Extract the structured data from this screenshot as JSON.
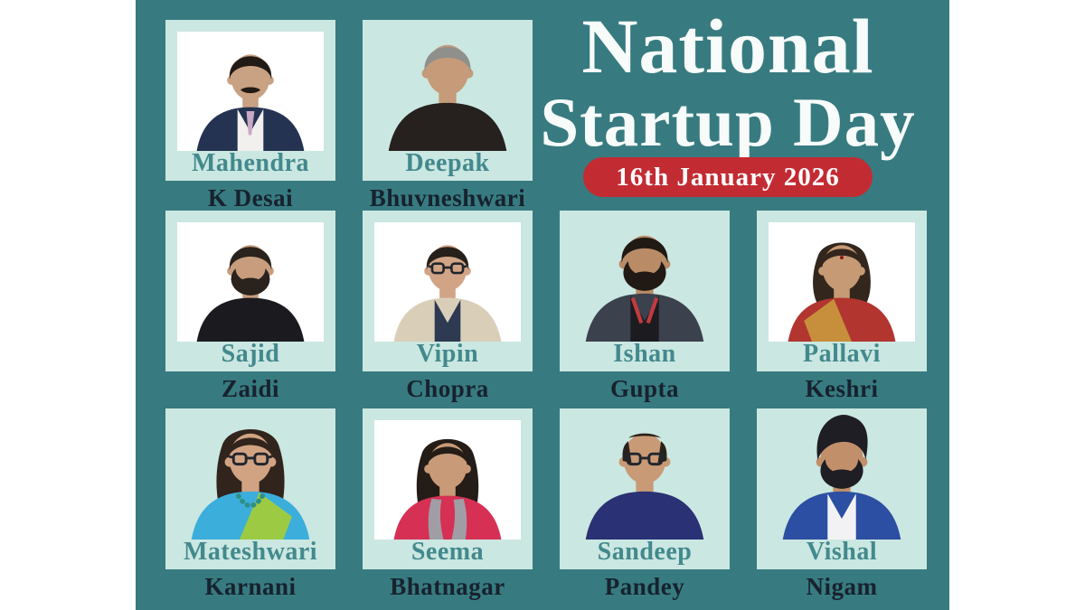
{
  "theme": {
    "background_white": "#FFFFFF",
    "poster_teal": "#377B80",
    "card_mint": "#CBE7E1",
    "first_name_teal": "#42898D",
    "last_name_navy": "#17222E",
    "badge_red": "#C32B33",
    "badge_text_white": "#FFFFFF",
    "title_white": "#F7FBFA"
  },
  "title": {
    "line1": "National",
    "line2": "Startup Day"
  },
  "badge": {
    "label": "16th January 2026"
  },
  "people": [
    {
      "first": "Mahendra",
      "last": "K Desai",
      "row": 1,
      "col": 1,
      "photo_style": "boxed",
      "photo_bg": "#FFFFFF",
      "avatar": {
        "skin": "#C9A183",
        "hair": "#221A14",
        "style": "short",
        "mustache": true,
        "shirt": "#243352",
        "inner": "#F2EFEF",
        "tie": "#C9A9C4"
      }
    },
    {
      "first": "Deepak",
      "last": "Bhuvneshwari",
      "row": 1,
      "col": 2,
      "photo_style": "cutout",
      "photo_bg": "transparent",
      "avatar": {
        "skin": "#C59B79",
        "hair": "#8F8F8B",
        "style": "short",
        "shirt": "#26211E"
      }
    },
    {
      "first": "Sajid",
      "last": "Zaidi",
      "row": 2,
      "col": 1,
      "photo_style": "boxed",
      "photo_bg": "#FFFFFF",
      "avatar": {
        "skin": "#C79D7E",
        "hair": "#2A221C",
        "style": "short",
        "beard": true,
        "mustache": true,
        "shirt": "#1B1B1F"
      }
    },
    {
      "first": "Vipin",
      "last": "Chopra",
      "row": 2,
      "col": 2,
      "photo_style": "boxed",
      "photo_bg": "#FFFFFF",
      "avatar": {
        "skin": "#D2A486",
        "hair": "#26201B",
        "style": "short",
        "glasses": true,
        "shirt": "#D9CFB9",
        "inner": "#2E3A52"
      }
    },
    {
      "first": "Ishan",
      "last": "Gupta",
      "row": 2,
      "col": 3,
      "photo_style": "cutout",
      "photo_bg": "transparent",
      "avatar": {
        "skin": "#B98B66",
        "hair": "#201914",
        "style": "short",
        "beard": true,
        "mustache": true,
        "shirt": "#3C414E",
        "inner": "#1C1C20",
        "lanyard": "#C23B3F"
      }
    },
    {
      "first": "Pallavi",
      "last": "Keshri",
      "row": 2,
      "col": 4,
      "photo_style": "boxed",
      "photo_bg": "#FFFFFF",
      "avatar": {
        "skin": "#C69A74",
        "hair": "#33261D",
        "style": "bob",
        "bindi": true,
        "shirt": "#B23530",
        "band_left": "#C78F3B"
      }
    },
    {
      "first": "Mateshwari",
      "last": "Karnani",
      "row": 3,
      "col": 1,
      "photo_style": "cutout",
      "photo_bg": "transparent",
      "avatar": {
        "skin": "#D2A383",
        "hair": "#30241C",
        "style": "long",
        "glasses": true,
        "shirt": "#3BAEDC",
        "band_right": "#9CCB43",
        "necklace": "#2E8F86"
      }
    },
    {
      "first": "Seema",
      "last": "Bhatnagar",
      "row": 3,
      "col": 2,
      "photo_style": "boxed",
      "photo_bg": "#FFFFFF",
      "avatar": {
        "skin": "#C89A78",
        "hair": "#241C16",
        "style": "long",
        "shirt": "#D63055",
        "shawl": "#A09EA4"
      }
    },
    {
      "first": "Sandeep",
      "last": "Pandey",
      "row": 3,
      "col": 3,
      "photo_style": "cutout",
      "photo_bg": "transparent",
      "avatar": {
        "skin": "#C99A76",
        "hair": "#2A211A",
        "style": "bald",
        "glasses": true,
        "shirt": "#2A3174"
      }
    },
    {
      "first": "Vishal",
      "last": "Nigam",
      "row": 3,
      "col": 4,
      "photo_style": "cutout",
      "photo_bg": "transparent",
      "avatar": {
        "skin": "#C28F6B",
        "hair": "#1E1E24",
        "style": "pomp",
        "beard": true,
        "mustache": true,
        "shirt": "#2C4FA3",
        "inner": "#F2F2F4"
      }
    }
  ]
}
